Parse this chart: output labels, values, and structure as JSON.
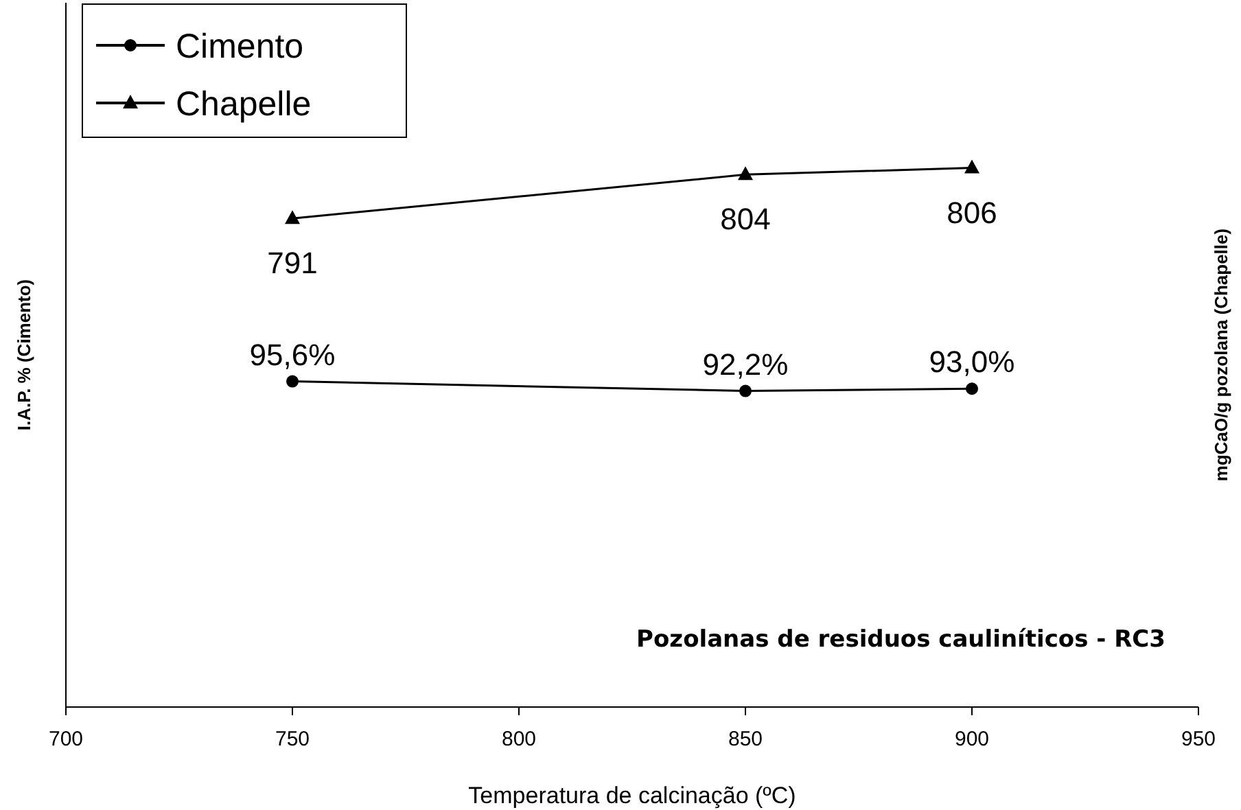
{
  "chart_data": {
    "type": "line",
    "xlabel": "Temperatura de calcinação (ºC)",
    "ylabel": "I.A.P. % (Cimento)",
    "y2label": "mgCaO/g pozolana (Chapelle)",
    "x": [
      750,
      850,
      900
    ],
    "xlim": [
      700,
      950
    ],
    "xticks": [
      700,
      750,
      800,
      850,
      900,
      950
    ],
    "ylim": [
      -20,
      230
    ],
    "y2lim": [
      646,
      855
    ],
    "tick_labels": "x",
    "series": [
      {
        "name": "Cimento",
        "color": "#000000",
        "marker": "circle",
        "values": [
          95.6,
          92.2,
          93.0
        ],
        "value_labels": [
          "95,6%",
          "92,2%",
          "93,0%"
        ]
      },
      {
        "name": "Chapelle",
        "color": "#000000",
        "marker": "triangle",
        "axis": "y2",
        "values": [
          791,
          804,
          806
        ],
        "value_labels": [
          "791",
          "804",
          "806"
        ]
      }
    ],
    "legend": "top left",
    "grid": false,
    "annotations": [
      "Pozolanas de residuos cauliníticos - RC3"
    ]
  }
}
